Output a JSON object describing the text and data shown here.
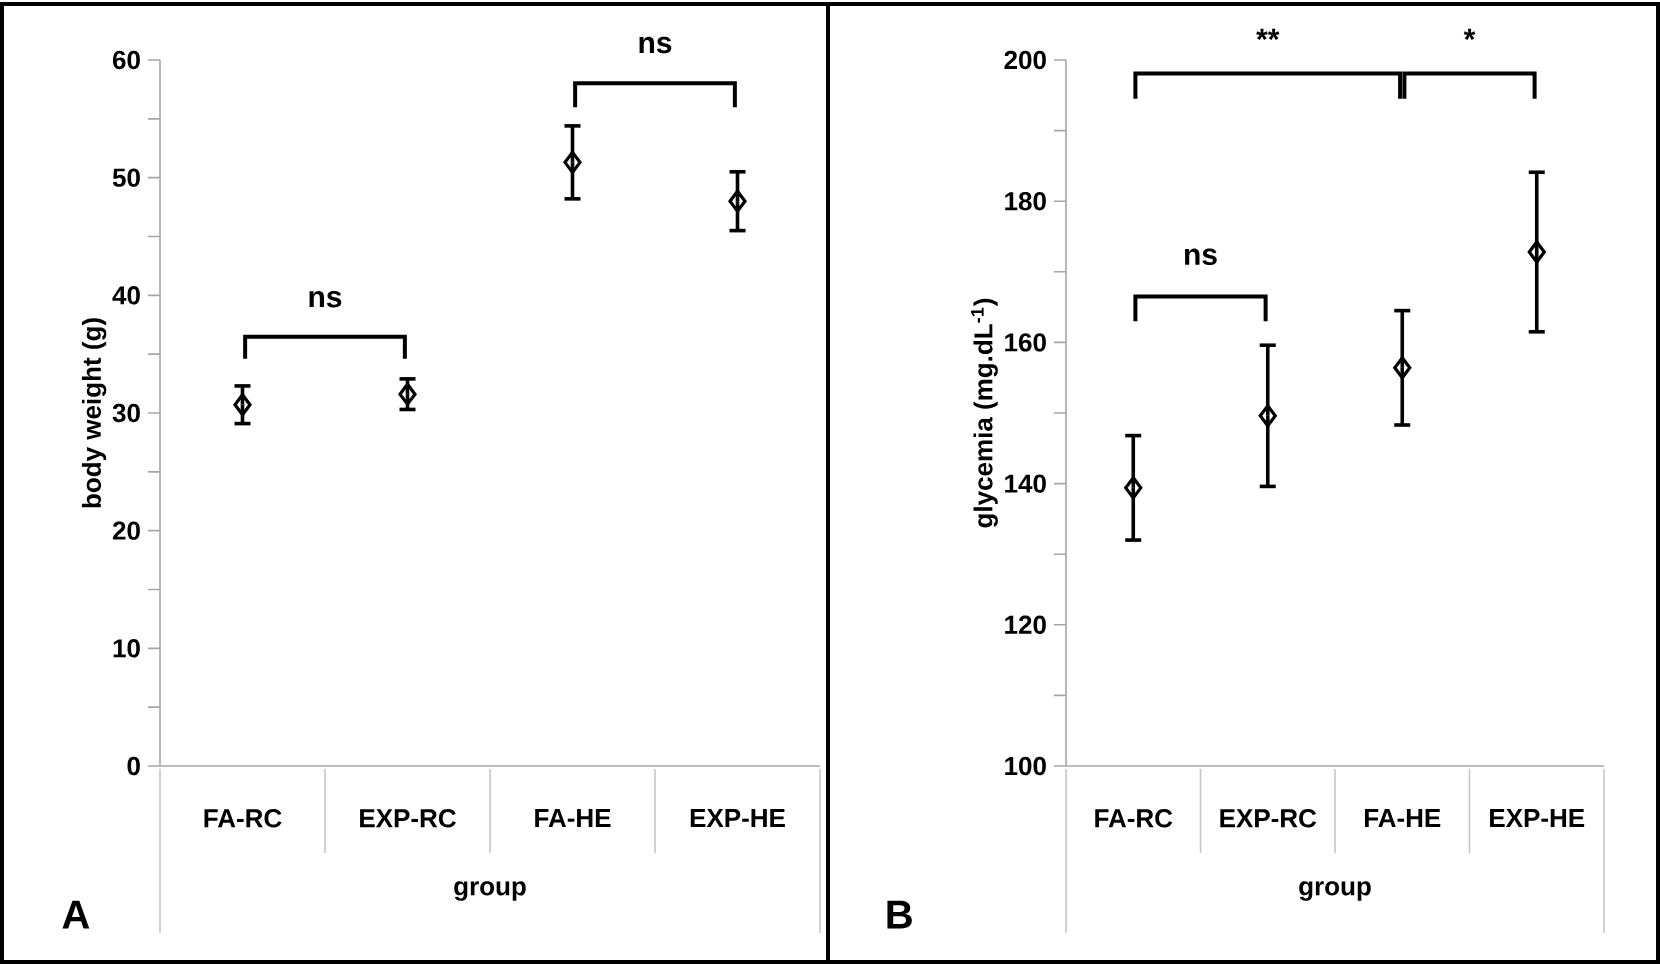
{
  "chart_data": [
    {
      "type": "scatter",
      "xlabel": "group",
      "ylabel": "body weight (g)",
      "categories": [
        "FA-RC",
        "EXP-RC",
        "FA-HE",
        "EXP-HE"
      ],
      "values": [
        30.7,
        31.6,
        51.3,
        48.0
      ],
      "errors": [
        1.6,
        1.3,
        3.1,
        2.5
      ],
      "color": "#000000",
      "marker": "diamond",
      "ylim": [
        0,
        60
      ],
      "yticks": [
        0,
        10,
        20,
        30,
        40,
        50,
        60
      ],
      "annotations": [
        "ns",
        "ns",
        "A"
      ]
    },
    {
      "type": "scatter",
      "xlabel": "group",
      "ylabel": "glycemia (mg.dL$^{-1}$)",
      "categories": [
        "FA-RC",
        "EXP-RC",
        "FA-HE",
        "EXP-HE"
      ],
      "values": [
        139.4,
        149.6,
        156.4,
        172.8
      ],
      "errors": [
        7.4,
        10.0,
        8.1,
        11.3
      ],
      "color": "#000000",
      "marker": "diamond",
      "ylim": [
        100,
        200
      ],
      "yticks": [
        100,
        120,
        140,
        160,
        180,
        200
      ],
      "annotations": [
        "ns",
        "**",
        "*",
        "B"
      ]
    }
  ]
}
